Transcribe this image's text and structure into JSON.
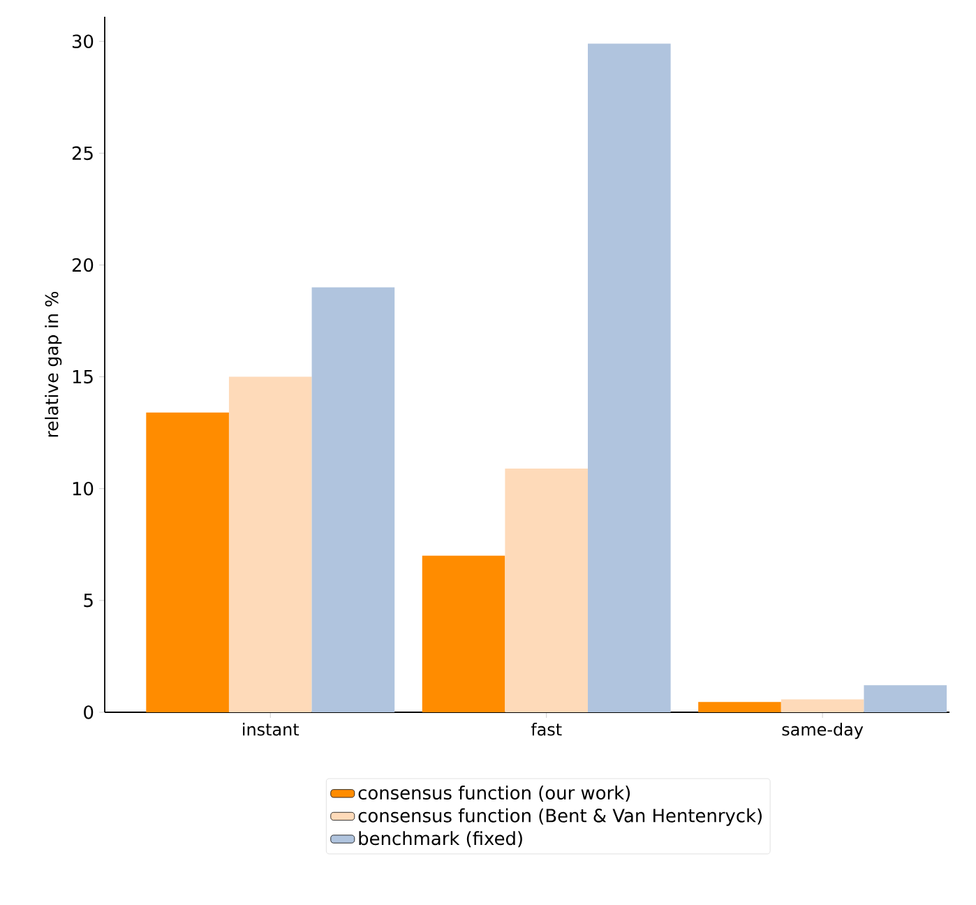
{
  "chart_data": {
    "type": "bar",
    "ylabel": "relative gap in %",
    "categories": [
      "instant",
      "fast",
      "same-day"
    ],
    "series": [
      {
        "name": "consensus function (our work)",
        "color": "#ff8c00",
        "values": [
          13.4,
          7.0,
          0.46
        ]
      },
      {
        "name": "consensus function (Bent & Van Hentenryck)",
        "color": "#fedab9",
        "values": [
          15.0,
          10.9,
          0.58
        ]
      },
      {
        "name": "benchmark (fixed)",
        "color": "#b0c4de",
        "values": [
          19.0,
          29.9,
          1.21
        ]
      }
    ],
    "ylim": [
      0,
      31.1
    ],
    "yticks": [
      0,
      5,
      10,
      15,
      20,
      25,
      30
    ],
    "legend": "bottom"
  }
}
